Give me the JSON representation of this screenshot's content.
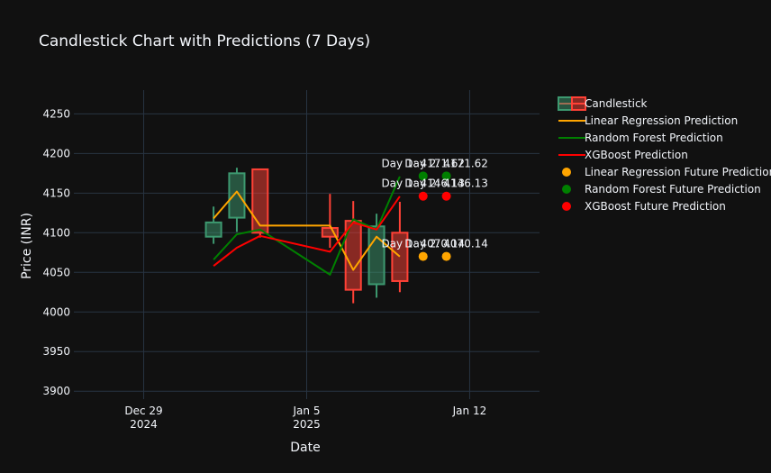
{
  "chart_data": {
    "type": "candlestick",
    "title": "Candlestick Chart with Predictions (7 Days)",
    "xlabel": "Date",
    "ylabel": "Price (INR)",
    "ylim": [
      3890,
      4280
    ],
    "xlim": [
      "2024-12-26",
      "2025-01-15"
    ],
    "y_ticks": [
      3900,
      3950,
      4000,
      4050,
      4100,
      4150,
      4200,
      4250
    ],
    "x_ticks": [
      {
        "date": "2024-12-29",
        "label": "Dec 29",
        "sublabel": "2024"
      },
      {
        "date": "2025-01-05",
        "label": "Jan 5",
        "sublabel": "2025"
      },
      {
        "date": "2025-01-12",
        "label": "Jan 12",
        "sublabel": ""
      }
    ],
    "grid": true,
    "legend_position": "right",
    "candles": [
      {
        "date": "2025-01-01",
        "open": 4095,
        "high": 4133,
        "low": 4086,
        "close": 4113,
        "direction": "up"
      },
      {
        "date": "2025-01-02",
        "open": 4119,
        "high": 4182,
        "low": 4101,
        "close": 4175,
        "direction": "up"
      },
      {
        "date": "2025-01-03",
        "open": 4180,
        "high": 4180,
        "low": 4094,
        "close": 4100,
        "direction": "down"
      },
      {
        "date": "2025-01-06",
        "open": 4106,
        "high": 4149,
        "low": 4081,
        "close": 4095,
        "direction": "down"
      },
      {
        "date": "2025-01-07",
        "open": 4115,
        "high": 4140,
        "low": 4011,
        "close": 4028,
        "direction": "down"
      },
      {
        "date": "2025-01-08",
        "open": 4035,
        "high": 4124,
        "low": 4018,
        "close": 4108,
        "direction": "up"
      },
      {
        "date": "2025-01-09",
        "open": 4100,
        "high": 4139,
        "low": 4025,
        "close": 4039,
        "direction": "down"
      }
    ],
    "series": [
      {
        "name": "Linear Regression Prediction",
        "color": "#FFA500",
        "kind": "line",
        "points": [
          [
            "2025-01-01",
            4118
          ],
          [
            "2025-01-02",
            4152
          ],
          [
            "2025-01-03",
            4109
          ],
          [
            "2025-01-06",
            4109
          ],
          [
            "2025-01-07",
            4053
          ],
          [
            "2025-01-08",
            4095
          ],
          [
            "2025-01-09",
            4070
          ]
        ]
      },
      {
        "name": "Random Forest Prediction",
        "color": "#008000",
        "kind": "line",
        "points": [
          [
            "2025-01-01",
            4066
          ],
          [
            "2025-01-02",
            4098
          ],
          [
            "2025-01-03",
            4104
          ],
          [
            "2025-01-06",
            4047
          ],
          [
            "2025-01-07",
            4117
          ],
          [
            "2025-01-08",
            4104
          ],
          [
            "2025-01-09",
            4171
          ]
        ]
      },
      {
        "name": "XGBoost Prediction",
        "color": "#FF0000",
        "kind": "line",
        "points": [
          [
            "2025-01-01",
            4058
          ],
          [
            "2025-01-02",
            4081
          ],
          [
            "2025-01-03",
            4096
          ],
          [
            "2025-01-06",
            4076
          ],
          [
            "2025-01-07",
            4113
          ],
          [
            "2025-01-08",
            4104
          ],
          [
            "2025-01-09",
            4146
          ]
        ]
      },
      {
        "name": "Linear Regression Future Prediction",
        "color": "#FFA500",
        "kind": "markers",
        "points": [
          [
            "2025-01-10",
            4070.14
          ],
          [
            "2025-01-11",
            4070.14
          ]
        ],
        "labels": [
          "Day 1: 4070.14",
          "Day 2: 4070.14"
        ]
      },
      {
        "name": "Random Forest Future Prediction",
        "color": "#008000",
        "kind": "markers",
        "points": [
          [
            "2025-01-10",
            4171.62
          ],
          [
            "2025-01-11",
            4171.62
          ]
        ],
        "labels": [
          "Day 1: 4171.62",
          "Day 2: 4171.62"
        ]
      },
      {
        "name": "XGBoost Future Prediction",
        "color": "#FF0000",
        "kind": "markers",
        "points": [
          [
            "2025-01-10",
            4146.13
          ],
          [
            "2025-01-11",
            4146.13
          ]
        ],
        "labels": [
          "Day 1: 4146.13",
          "Day 2: 4146.13"
        ]
      }
    ],
    "legend": [
      {
        "name": "Candlestick",
        "symbol": "candle"
      },
      {
        "name": "Linear Regression Prediction",
        "symbol": "line",
        "color": "#FFA500"
      },
      {
        "name": "Random Forest Prediction",
        "symbol": "line",
        "color": "#008000"
      },
      {
        "name": "XGBoost Prediction",
        "symbol": "line",
        "color": "#FF0000"
      },
      {
        "name": "Linear Regression Future Prediction",
        "symbol": "dot",
        "color": "#FFA500"
      },
      {
        "name": "Random Forest Future Prediction",
        "symbol": "dot",
        "color": "#008000"
      },
      {
        "name": "XGBoost Future Prediction",
        "symbol": "dot",
        "color": "#FF0000"
      }
    ],
    "colors": {
      "background": "#111111",
      "grid": "#283442",
      "text": "#f2f5fa",
      "increasing_line": "#3D9970",
      "increasing_fill": "rgba(61,153,112,0.5)",
      "decreasing_line": "#FF4136",
      "decreasing_fill": "rgba(255,65,54,0.5)"
    }
  }
}
